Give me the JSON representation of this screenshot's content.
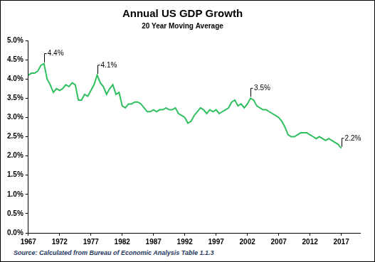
{
  "chart_data": {
    "type": "line",
    "title": "Annual US GDP Growth",
    "subtitle": "20 Year Moving Average",
    "source": "Source: Calculated  from Bureau of Economic Analysis Table  1.1.3",
    "color": "#2fbf5f",
    "grid": false,
    "x": [
      1967,
      1967.5,
      1968,
      1968.5,
      1969,
      1969.5,
      1970,
      1970.5,
      1971,
      1971.5,
      1972,
      1972.5,
      1973,
      1973.5,
      1974,
      1974.5,
      1975,
      1975.5,
      1976,
      1976.5,
      1977,
      1977.5,
      1978,
      1978.5,
      1979,
      1979.5,
      1980,
      1980.5,
      1981,
      1981.5,
      1982,
      1982.5,
      1983,
      1983.5,
      1984,
      1984.5,
      1985,
      1985.5,
      1986,
      1986.5,
      1987,
      1987.5,
      1988,
      1988.5,
      1989,
      1989.5,
      1990,
      1990.5,
      1991,
      1991.5,
      1992,
      1992.5,
      1993,
      1993.5,
      1994,
      1994.5,
      1995,
      1995.5,
      1996,
      1996.5,
      1997,
      1997.5,
      1998,
      1998.5,
      1999,
      1999.5,
      2000,
      2000.5,
      2001,
      2001.5,
      2002,
      2002.5,
      2003,
      2003.5,
      2004,
      2004.5,
      2005,
      2005.5,
      2006,
      2006.5,
      2007,
      2007.5,
      2008,
      2008.5,
      2009,
      2009.5,
      2010,
      2010.5,
      2011,
      2011.5,
      2012,
      2012.5,
      2013,
      2013.5,
      2014,
      2014.5,
      2015,
      2015.5,
      2016,
      2016.5,
      2017
    ],
    "values": [
      4.1,
      4.15,
      4.15,
      4.2,
      4.35,
      4.4,
      4.0,
      3.85,
      3.65,
      3.75,
      3.7,
      3.75,
      3.85,
      3.8,
      3.9,
      3.85,
      3.45,
      3.45,
      3.6,
      3.55,
      3.7,
      3.85,
      4.1,
      3.9,
      3.8,
      3.6,
      3.75,
      3.85,
      3.6,
      3.65,
      3.3,
      3.25,
      3.35,
      3.35,
      3.4,
      3.4,
      3.35,
      3.25,
      3.15,
      3.15,
      3.2,
      3.15,
      3.2,
      3.2,
      3.25,
      3.2,
      3.2,
      3.25,
      3.1,
      3.05,
      3.0,
      2.85,
      2.9,
      3.05,
      3.15,
      3.25,
      3.2,
      3.1,
      3.2,
      3.15,
      3.2,
      3.1,
      3.15,
      3.2,
      3.25,
      3.4,
      3.45,
      3.3,
      3.35,
      3.25,
      3.35,
      3.5,
      3.45,
      3.3,
      3.25,
      3.2,
      3.2,
      3.15,
      3.1,
      3.05,
      3.0,
      2.9,
      2.75,
      2.55,
      2.5,
      2.5,
      2.55,
      2.6,
      2.6,
      2.6,
      2.55,
      2.5,
      2.45,
      2.5,
      2.45,
      2.4,
      2.45,
      2.4,
      2.35,
      2.3,
      2.2
    ],
    "xlim": [
      1967,
      2020
    ],
    "xticks": [
      1967,
      1972,
      1977,
      1982,
      1987,
      1992,
      1997,
      2002,
      2007,
      2012,
      2017
    ],
    "ylim": [
      0,
      5
    ],
    "yticks": [
      {
        "value": 0,
        "label": "0.0%"
      },
      {
        "value": 0.5,
        "label": "0.5%"
      },
      {
        "value": 1,
        "label": "1.0%"
      },
      {
        "value": 1.5,
        "label": "1.5%"
      },
      {
        "value": 2,
        "label": "2.0%"
      },
      {
        "value": 2.5,
        "label": "2.5%"
      },
      {
        "value": 3,
        "label": "3.0%"
      },
      {
        "value": 3.5,
        "label": "3.5%"
      },
      {
        "value": 4,
        "label": "4.0%"
      },
      {
        "value": 4.5,
        "label": "4.5%"
      },
      {
        "value": 5,
        "label": "5.0%"
      }
    ],
    "annotations": [
      {
        "x": 1969.5,
        "y": 4.4,
        "label": "4.4%"
      },
      {
        "x": 1978,
        "y": 4.1,
        "label": "4.1%"
      },
      {
        "x": 2002.5,
        "y": 3.5,
        "label": "3.5%"
      },
      {
        "x": 2017,
        "y": 2.2,
        "label": "2.2%"
      }
    ]
  }
}
